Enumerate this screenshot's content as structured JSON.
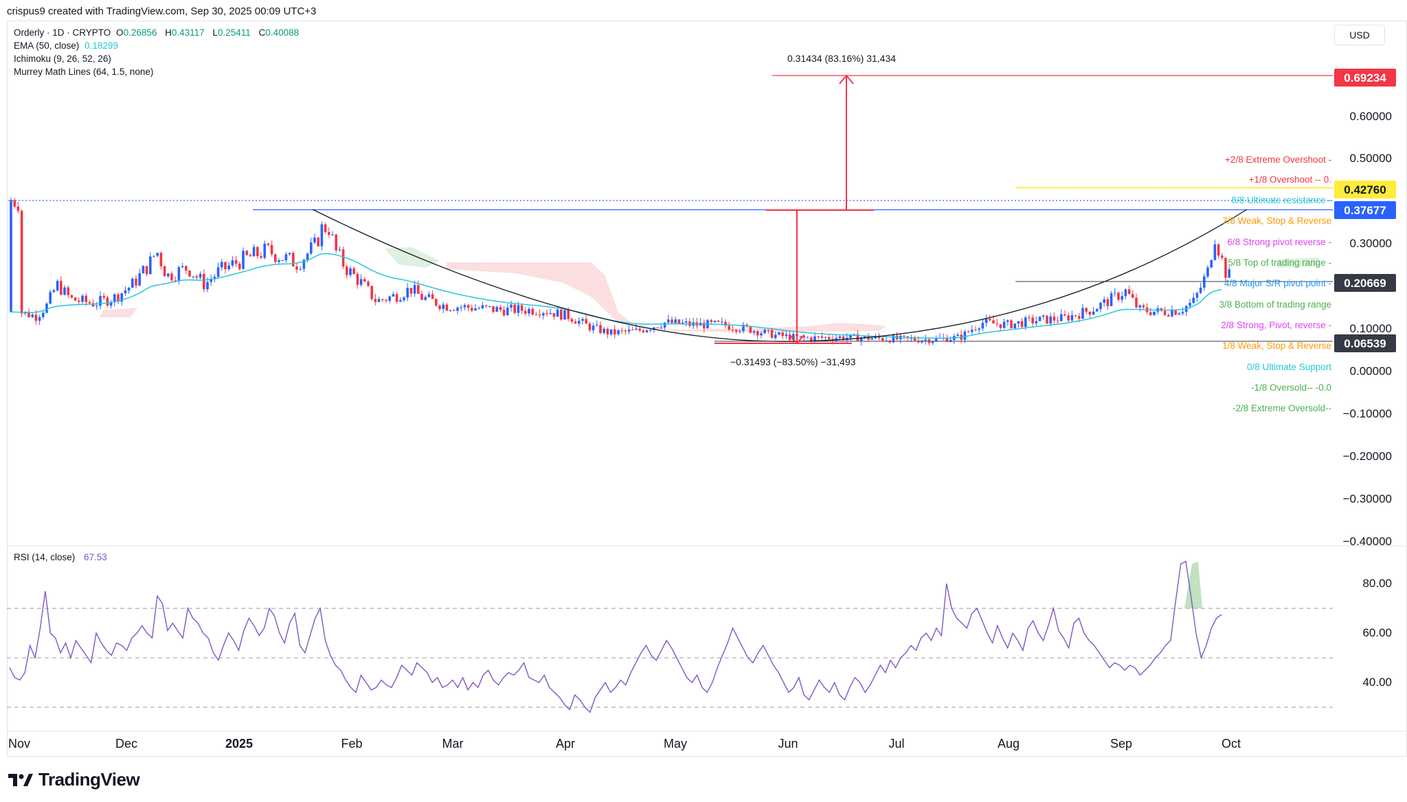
{
  "header": {
    "credit": "crispus9 created with TradingView.com, Sep 30, 2025 00:09 UTC+3"
  },
  "legend": {
    "symbol": "Orderly · 1D · CRYPTO",
    "ohlc": {
      "o_label": "O",
      "o": "0.26856",
      "h_label": "H",
      "h": "0.43117",
      "l_label": "L",
      "l": "0.25411",
      "c_label": "C",
      "c": "0.40088"
    },
    "ema_label": "EMA (50, close)",
    "ema_value": "0.18299",
    "ichimoku_label": "Ichimoku (9, 26, 52, 26)",
    "murrey_label": "Murrey Math Lines (64, 1.5, none)"
  },
  "currency": "USD",
  "colors": {
    "up": "#2962ff",
    "down": "#f23645",
    "ema": "#26c6da",
    "rsi": "#7e57c2",
    "cloud": "#f7c5c9",
    "yellow": "#ffeb3b"
  },
  "chart_data": {
    "type": "candlestick",
    "price_axis": {
      "ticks": [
        "0.60000",
        "0.50000",
        "0.30000",
        "0.10000",
        "0.00000",
        "−0.10000",
        "−0.20000",
        "−0.30000",
        "−0.40000"
      ]
    },
    "price_labels": [
      {
        "value": "0.69234",
        "color": "#f23645"
      },
      {
        "value": "0.42760",
        "color": "#ffeb3b"
      },
      {
        "value": "0.37677",
        "color": "#2962ff"
      },
      {
        "value": "0.20669",
        "color": "#363a45"
      },
      {
        "value": "0.06539",
        "color": "#363a45"
      }
    ],
    "x_axis": [
      "Nov",
      "Dec",
      "2025",
      "Feb",
      "Mar",
      "Apr",
      "May",
      "Jun",
      "Jul",
      "Aug",
      "Sep",
      "Oct"
    ],
    "murrey_lines": [
      {
        "label": "+2/8 Extreme Overshoot -",
        "color": "#f23645"
      },
      {
        "label": "+1/8 Overshoot -- 0.",
        "color": "#f23645"
      },
      {
        "label": "8/8 Ultimate resistance -",
        "color": "#26c6da"
      },
      {
        "label": "7/8 Weak, Stop & Reverse",
        "color": "#ff9800"
      },
      {
        "label": "6/8 Strong pivot reverse -",
        "color": "#e040fb"
      },
      {
        "label": "5/8 Top of trading range -",
        "color": "#4caf50"
      },
      {
        "label": "4/8 Major S/R pivot point -",
        "color": "#2196f3"
      },
      {
        "label": "3/8 Bottom of trading range",
        "color": "#4caf50"
      },
      {
        "label": "2/8 Strong, Pivot, reverse -",
        "color": "#e040fb"
      },
      {
        "label": "1/8 Weak, Stop & Reverse",
        "color": "#ff9800"
      },
      {
        "label": "0/8 Ultimate Support",
        "color": "#26c6da"
      },
      {
        "label": "-1/8 Oversold-- -0.0",
        "color": "#4caf50"
      },
      {
        "label": "-2/8 Extreme Oversold--",
        "color": "#4caf50"
      }
    ],
    "measure_up": "0.31434 (83.16%) 31,434",
    "measure_down": "−0.31493 (−83.50%) −31,493",
    "rsi": {
      "label": "RSI (14, close)",
      "value": "67.53",
      "ticks": [
        "80.00",
        "60.00",
        "40.00"
      ],
      "bands": [
        70,
        50,
        30
      ],
      "values": [
        46,
        42,
        41,
        44,
        55,
        50,
        62,
        77,
        60,
        58,
        52,
        56,
        50,
        57,
        54,
        51,
        48,
        60,
        56,
        53,
        51,
        56,
        55,
        53,
        58,
        60,
        63,
        60,
        58,
        75,
        72,
        61,
        64,
        61,
        58,
        70,
        66,
        64,
        60,
        58,
        52,
        49,
        55,
        60,
        57,
        53,
        61,
        66,
        63,
        59,
        62,
        70,
        67,
        60,
        56,
        64,
        68,
        55,
        52,
        59,
        66,
        70,
        57,
        51,
        47,
        45,
        41,
        38,
        36,
        43,
        40,
        37,
        38,
        41,
        39,
        38,
        42,
        47,
        45,
        43,
        48,
        46,
        44,
        40,
        42,
        38,
        39,
        41,
        38,
        42,
        37,
        40,
        38,
        43,
        45,
        41,
        39,
        42,
        44,
        43,
        45,
        48,
        42,
        41,
        40,
        43,
        38,
        36,
        34,
        31,
        29,
        35,
        33,
        30,
        28,
        34,
        37,
        40,
        36,
        38,
        41,
        39,
        44,
        48,
        52,
        55,
        51,
        49,
        53,
        57,
        54,
        50,
        46,
        42,
        40,
        43,
        38,
        36,
        40,
        46,
        51,
        56,
        62,
        58,
        54,
        50,
        48,
        52,
        55,
        51,
        47,
        44,
        40,
        36,
        38,
        42,
        35,
        33,
        37,
        41,
        38,
        36,
        40,
        35,
        33,
        38,
        42,
        40,
        36,
        39,
        43,
        47,
        44,
        49,
        46,
        50,
        52,
        55,
        53,
        58,
        60,
        57,
        62,
        59,
        80,
        70,
        66,
        64,
        62,
        68,
        70,
        65,
        60,
        56,
        63,
        58,
        54,
        60,
        57,
        53,
        62,
        65,
        60,
        57,
        63,
        70,
        61,
        58,
        54,
        64,
        66,
        60,
        57,
        55,
        52,
        49,
        46,
        48,
        47,
        45,
        47,
        46,
        43,
        45,
        47,
        50,
        52,
        55,
        57,
        73,
        88,
        89,
        75,
        60,
        50,
        55,
        62,
        66,
        67.5
      ]
    }
  }
}
